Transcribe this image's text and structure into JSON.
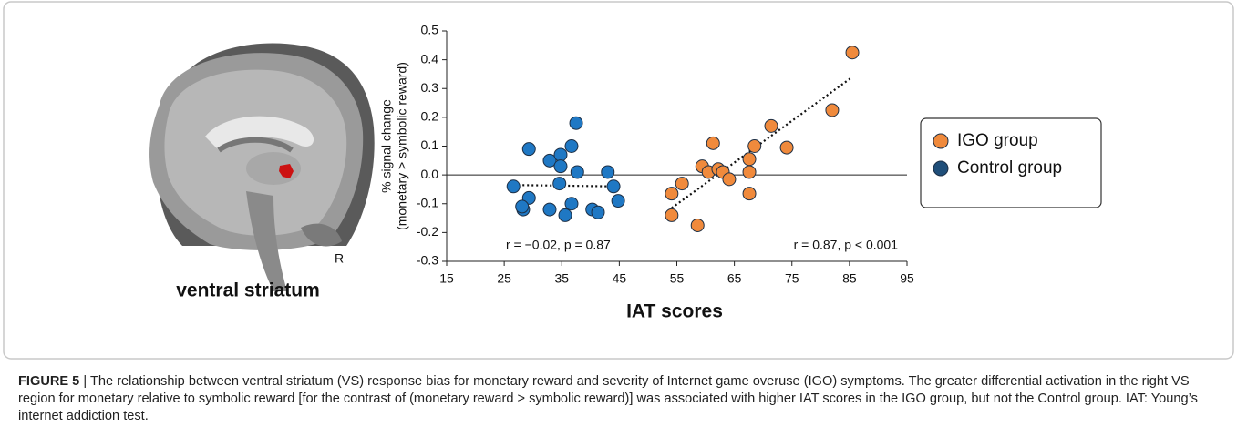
{
  "chart_data": {
    "type": "scatter",
    "xlabel": "IAT scores",
    "ylabel_lines": [
      "% signal change",
      "(monetary > symbolic reward)"
    ],
    "xlim": [
      15,
      95
    ],
    "xticks": [
      15,
      25,
      35,
      45,
      55,
      65,
      75,
      85,
      95
    ],
    "ylim": [
      -0.3,
      0.5
    ],
    "yticks": [
      -0.3,
      -0.2,
      -0.1,
      {
        "value": 0,
        "label": "0.0"
      },
      0.1,
      0.2,
      0.3,
      0.4,
      0.5
    ],
    "zero_line": true,
    "legend": "right",
    "series": [
      {
        "name": "IGO group",
        "color": "#f08a3c",
        "x": [
          54.1,
          54.1,
          55.9,
          58.6,
          59.4,
          60.5,
          61.3,
          62.2,
          63.0,
          64.1,
          67.6,
          67.6,
          67.6,
          68.5,
          71.4,
          74.1,
          82.0,
          85.5
        ],
        "values": [
          -0.14,
          -0.065,
          -0.03,
          -0.175,
          0.03,
          0.01,
          0.11,
          0.02,
          0.01,
          -0.015,
          0.055,
          0.01,
          -0.065,
          0.1,
          0.17,
          0.095,
          0.225,
          0.425
        ]
      },
      {
        "name": "Control group",
        "color": "#1f78c4",
        "x": [
          26.6,
          29.3,
          29.3,
          28.3,
          28.1,
          32.9,
          34.8,
          34.8,
          32.9,
          34.6,
          35.6,
          36.7,
          36.7,
          37.5,
          37.7,
          40.3,
          41.3,
          43.0,
          44.0,
          44.8
        ],
        "values": [
          -0.04,
          0.09,
          -0.08,
          -0.12,
          -0.11,
          0.05,
          0.07,
          0.03,
          -0.12,
          -0.03,
          -0.14,
          0.1,
          -0.1,
          0.18,
          0.01,
          -0.12,
          -0.13,
          0.01,
          -0.04,
          -0.09
        ]
      }
    ],
    "fit_lines": [
      {
        "x": [
          26.6,
          45.1
        ],
        "values": [
          -0.035,
          -0.04
        ]
      },
      {
        "x": [
          54.1,
          85.5
        ],
        "values": [
          -0.115,
          0.34
        ]
      }
    ],
    "annotations": [
      "r = −0.02, p = 0.87",
      "r = 0.87, p < 0.001"
    ]
  },
  "figure": {
    "image_label": "ventral striatum",
    "orientation_label": "R",
    "caption_label": "FIGURE 5",
    "caption_text": "| The relationship between ventral striatum (VS) response bias for monetary reward and severity of Internet game overuse (IGO) symptoms. The greater differential activation in the right VS region for monetary relative to symbolic reward [for the contrast of (monetary reward > symbolic reward)] was associated with higher IAT scores in the IGO group, but not the Control group. IAT: Young’s internet addiction test."
  }
}
